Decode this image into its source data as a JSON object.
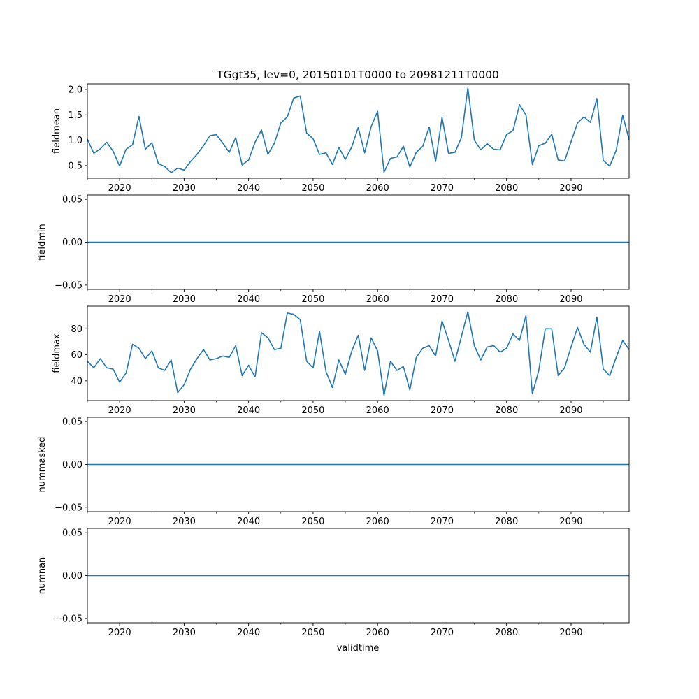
{
  "chart_data": {
    "type": "line",
    "title": "TGgt35, lev=0, 20150101T0000 to 20981211T0000",
    "xlabel": "validtime",
    "xlim": [
      2015,
      2099
    ],
    "xticks": [
      2020,
      2030,
      2040,
      2050,
      2060,
      2070,
      2080,
      2090
    ],
    "x_minor_ticks": [
      2015,
      2025,
      2035,
      2045,
      2055,
      2065,
      2075,
      2085,
      2095
    ],
    "x_start_year": 2015,
    "line_color": "#1f77b4",
    "panels": [
      {
        "ylabel": "fieldmean",
        "ylim": [
          0.25,
          2.11
        ],
        "yticks": [
          0.5,
          1.0,
          1.5,
          2.0
        ],
        "ytick_labels": [
          "0.5",
          "1.0",
          "1.5",
          "2.0"
        ],
        "values": [
          1.02,
          0.74,
          0.83,
          0.96,
          0.78,
          0.49,
          0.82,
          0.91,
          1.47,
          0.82,
          0.95,
          0.54,
          0.48,
          0.36,
          0.45,
          0.41,
          0.58,
          0.72,
          0.89,
          1.09,
          1.11,
          0.94,
          0.76,
          1.05,
          0.51,
          0.61,
          0.96,
          1.2,
          0.72,
          0.94,
          1.34,
          1.46,
          1.83,
          1.87,
          1.14,
          1.03,
          0.72,
          0.75,
          0.52,
          0.86,
          0.62,
          0.87,
          1.25,
          0.75,
          1.27,
          1.57,
          0.37,
          0.64,
          0.67,
          0.88,
          0.47,
          0.76,
          0.88,
          1.26,
          0.58,
          1.45,
          0.74,
          0.76,
          1.05,
          2.03,
          1.0,
          0.81,
          0.93,
          0.82,
          0.81,
          1.11,
          1.19,
          1.7,
          1.5,
          0.52,
          0.89,
          0.94,
          1.12,
          0.61,
          0.59,
          0.97,
          1.34,
          1.46,
          1.35,
          1.82,
          0.6,
          0.49,
          0.8,
          1.49,
          1.01
        ]
      },
      {
        "ylabel": "fieldmin",
        "ylim": [
          -0.055,
          0.055
        ],
        "yticks": [
          -0.05,
          0.0,
          0.05
        ],
        "ytick_labels": [
          "−0.05",
          "0.00",
          "0.05"
        ],
        "constant_value": 0
      },
      {
        "ylabel": "fieldmax",
        "ylim": [
          24.9,
          97.3
        ],
        "yticks": [
          40,
          60,
          80
        ],
        "ytick_labels": [
          "40",
          "60",
          "80"
        ],
        "values": [
          55,
          50,
          57,
          50,
          49,
          39,
          46,
          68,
          65,
          57,
          63,
          50,
          48,
          56,
          31,
          37,
          49,
          57,
          64,
          56,
          57,
          59,
          58,
          67,
          44,
          52,
          43,
          77,
          73,
          64,
          65,
          92,
          91,
          87,
          55,
          50,
          78,
          47,
          35,
          56,
          45,
          63,
          75,
          48,
          73,
          63,
          29,
          55,
          48,
          51,
          33,
          58,
          65,
          67,
          59,
          86,
          71,
          55,
          74,
          93,
          67,
          56,
          66,
          67,
          62,
          65,
          76,
          71,
          90,
          30,
          48,
          80,
          80,
          44,
          50,
          66,
          81,
          68,
          62,
          89,
          49,
          44,
          58,
          71,
          64
        ]
      },
      {
        "ylabel": "nummasked",
        "ylim": [
          -0.055,
          0.055
        ],
        "yticks": [
          -0.05,
          0.0,
          0.05
        ],
        "ytick_labels": [
          "−0.05",
          "0.00",
          "0.05"
        ],
        "constant_value": 0
      },
      {
        "ylabel": "numnan",
        "ylim": [
          -0.055,
          0.055
        ],
        "yticks": [
          -0.05,
          0.0,
          0.05
        ],
        "ytick_labels": [
          "−0.05",
          "0.00",
          "0.05"
        ],
        "constant_value": 0
      }
    ]
  }
}
